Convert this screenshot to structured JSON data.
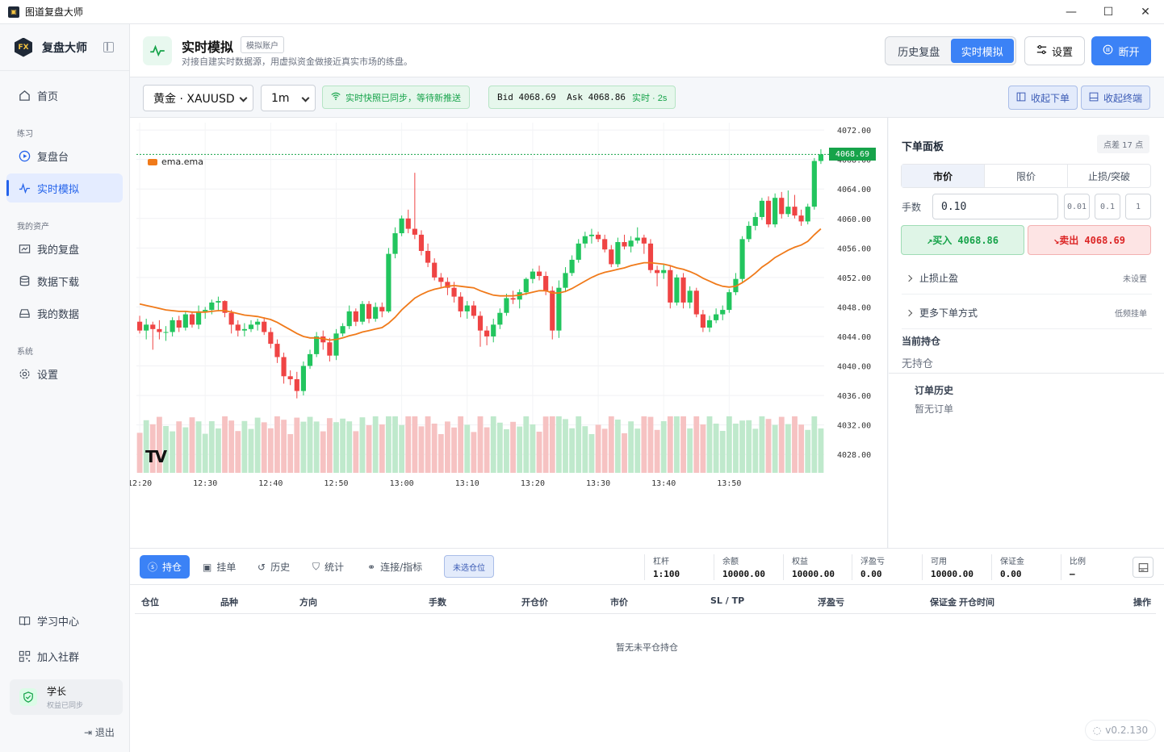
{
  "window": {
    "title": "图道复盘大师",
    "minimize": "—",
    "maximize": "☐",
    "close": "✕"
  },
  "sidebar": {
    "brand": "复盘大师",
    "logo_text": "FX",
    "home": "首页",
    "section_practice": "练习",
    "replay": "复盘台",
    "live_sim": "实时模拟",
    "section_assets": "我的资产",
    "my_replays": "我的复盘",
    "data_download": "数据下载",
    "my_data": "我的数据",
    "section_system": "系统",
    "settings": "设置",
    "learning": "学习中心",
    "community": "加入社群",
    "user_name": "学长",
    "user_status": "权益已同步",
    "logout": "退出"
  },
  "header": {
    "title": "实时模拟",
    "badge": "模拟账户",
    "subtitle": "对接自建实时数据源，用虚拟资金做接近真实市场的练盘。",
    "mode_history": "历史复盘",
    "mode_live": "实时模拟",
    "settings": "设置",
    "disconnect": "断开"
  },
  "toolbar": {
    "symbol": "黄金 · XAUUSD",
    "timeframe": "1m",
    "sync_status": "实时快照已同步，等待新推送",
    "bid_label": "Bid",
    "bid": "4068.69",
    "ask_label": "Ask",
    "ask": "4068.86",
    "live_label": "实时 · 2s",
    "collapse_order": "收起下单",
    "collapse_terminal": "收起终端"
  },
  "chart_data": {
    "type": "candlestick",
    "symbol": "XAUUSD",
    "indicator": "ema.ema",
    "last_price": "4068.69",
    "y_ticks": [
      "4072.00",
      "4068.00",
      "4064.00",
      "4060.00",
      "4056.00",
      "4052.00",
      "4048.00",
      "4044.00",
      "4040.00",
      "4036.00",
      "4032.00",
      "4028.00"
    ],
    "ylim": [
      4025.5,
      4073.0
    ],
    "x_ticks": [
      "12:20",
      "12:30",
      "12:40",
      "12:50",
      "13:00",
      "13:10",
      "13:20",
      "13:30",
      "13:40",
      "13:50"
    ],
    "candles_ohlc": [
      [
        4046.0,
        4046.8,
        4044.4,
        4044.8
      ],
      [
        4044.8,
        4046.4,
        4043.6,
        4045.6
      ],
      [
        4045.6,
        4046.0,
        4042.2,
        4045.0
      ],
      [
        4045.0,
        4046.2,
        4043.6,
        4044.6
      ],
      [
        4044.6,
        4045.4,
        4043.4,
        4044.6
      ],
      [
        4044.6,
        4046.6,
        4044.0,
        4046.2
      ],
      [
        4046.2,
        4046.8,
        4044.6,
        4045.2
      ],
      [
        4045.2,
        4047.4,
        4044.8,
        4047.0
      ],
      [
        4047.0,
        4047.4,
        4045.2,
        4045.6
      ],
      [
        4045.6,
        4048.2,
        4045.0,
        4047.4
      ],
      [
        4047.4,
        4048.0,
        4046.4,
        4047.6
      ],
      [
        4047.6,
        4049.0,
        4047.0,
        4048.6
      ],
      [
        4048.6,
        4049.4,
        4047.4,
        4048.8
      ],
      [
        4048.8,
        4048.9,
        4046.6,
        4047.2
      ],
      [
        4047.2,
        4047.6,
        4044.4,
        4045.6
      ],
      [
        4045.6,
        4046.2,
        4044.0,
        4044.8
      ],
      [
        4044.8,
        4045.8,
        4044.0,
        4045.0
      ],
      [
        4045.0,
        4046.2,
        4044.6,
        4045.6
      ],
      [
        4045.6,
        4046.4,
        4044.8,
        4046.0
      ],
      [
        4046.0,
        4046.6,
        4044.2,
        4044.6
      ],
      [
        4044.6,
        4045.2,
        4042.4,
        4043.0
      ],
      [
        4043.0,
        4043.6,
        4040.4,
        4041.2
      ],
      [
        4041.2,
        4041.8,
        4037.6,
        4038.6
      ],
      [
        4038.6,
        4039.4,
        4037.4,
        4038.2
      ],
      [
        4038.2,
        4039.2,
        4035.6,
        4036.6
      ],
      [
        4036.6,
        4040.6,
        4036.0,
        4040.0
      ],
      [
        4040.0,
        4042.2,
        4039.6,
        4041.6
      ],
      [
        4041.6,
        4044.6,
        4041.2,
        4044.0
      ],
      [
        4044.0,
        4044.8,
        4042.2,
        4043.2
      ],
      [
        4043.2,
        4043.8,
        4040.6,
        4041.4
      ],
      [
        4041.4,
        4045.0,
        4040.8,
        4044.4
      ],
      [
        4044.4,
        4045.8,
        4044.0,
        4045.4
      ],
      [
        4045.4,
        4048.2,
        4045.0,
        4047.4
      ],
      [
        4047.4,
        4047.8,
        4045.4,
        4046.0
      ],
      [
        4046.0,
        4048.8,
        4045.6,
        4048.4
      ],
      [
        4048.4,
        4048.8,
        4045.8,
        4046.4
      ],
      [
        4046.4,
        4048.6,
        4046.0,
        4048.0
      ],
      [
        4048.0,
        4048.6,
        4046.6,
        4047.4
      ],
      [
        4047.4,
        4056.0,
        4047.2,
        4055.2
      ],
      [
        4055.2,
        4058.8,
        4054.6,
        4058.0
      ],
      [
        4058.0,
        4060.4,
        4057.6,
        4060.0
      ],
      [
        4060.0,
        4061.2,
        4058.0,
        4058.6
      ],
      [
        4058.6,
        4066.2,
        4057.2,
        4057.8
      ],
      [
        4057.8,
        4058.4,
        4055.0,
        4055.6
      ],
      [
        4055.6,
        4056.6,
        4053.4,
        4054.0
      ],
      [
        4054.0,
        4054.6,
        4051.6,
        4052.0
      ],
      [
        4052.0,
        4052.6,
        4050.6,
        4051.4
      ],
      [
        4051.4,
        4052.0,
        4049.6,
        4050.6
      ],
      [
        4050.6,
        4051.4,
        4048.6,
        4049.4
      ],
      [
        4049.4,
        4050.0,
        4046.6,
        4047.4
      ],
      [
        4047.4,
        4048.8,
        4046.4,
        4048.2
      ],
      [
        4048.2,
        4048.8,
        4046.4,
        4046.8
      ],
      [
        4046.8,
        4047.4,
        4042.6,
        4044.8
      ],
      [
        4044.8,
        4045.4,
        4042.8,
        4044.0
      ],
      [
        4044.0,
        4046.4,
        4043.2,
        4045.6
      ],
      [
        4045.6,
        4047.8,
        4045.0,
        4047.2
      ],
      [
        4047.2,
        4049.8,
        4046.8,
        4049.2
      ],
      [
        4049.2,
        4050.2,
        4048.4,
        4049.0
      ],
      [
        4049.0,
        4050.4,
        4047.8,
        4050.0
      ],
      [
        4050.0,
        4052.0,
        4049.6,
        4051.8
      ],
      [
        4051.8,
        4053.2,
        4051.2,
        4052.8
      ],
      [
        4052.8,
        4053.6,
        4051.6,
        4052.2
      ],
      [
        4052.2,
        4052.8,
        4049.6,
        4050.2
      ],
      [
        4050.2,
        4050.8,
        4043.6,
        4044.8
      ],
      [
        4044.8,
        4051.6,
        4043.8,
        4050.6
      ],
      [
        4050.6,
        4053.4,
        4050.0,
        4052.6
      ],
      [
        4052.6,
        4055.0,
        4052.2,
        4054.4
      ],
      [
        4054.4,
        4057.2,
        4054.0,
        4056.6
      ],
      [
        4056.6,
        4058.2,
        4056.0,
        4057.6
      ],
      [
        4057.6,
        4058.6,
        4056.6,
        4057.8
      ],
      [
        4057.8,
        4058.2,
        4056.8,
        4057.2
      ],
      [
        4057.2,
        4057.8,
        4055.4,
        4055.8
      ],
      [
        4055.8,
        4056.4,
        4053.4,
        4053.8
      ],
      [
        4053.8,
        4057.4,
        4053.4,
        4056.8
      ],
      [
        4056.8,
        4057.8,
        4055.8,
        4056.2
      ],
      [
        4056.2,
        4057.6,
        4055.4,
        4057.0
      ],
      [
        4057.0,
        4058.8,
        4056.6,
        4057.4
      ],
      [
        4057.4,
        4057.8,
        4055.2,
        4056.6
      ],
      [
        4056.6,
        4057.2,
        4052.6,
        4053.0
      ],
      [
        4053.0,
        4053.6,
        4050.8,
        4052.6
      ],
      [
        4052.6,
        4053.8,
        4051.8,
        4053.0
      ],
      [
        4053.0,
        4053.6,
        4047.8,
        4048.6
      ],
      [
        4048.6,
        4052.4,
        4048.2,
        4052.0
      ],
      [
        4052.0,
        4052.6,
        4047.8,
        4048.6
      ],
      [
        4048.6,
        4050.8,
        4047.8,
        4050.2
      ],
      [
        4050.2,
        4050.6,
        4046.6,
        4047.0
      ],
      [
        4047.0,
        4047.6,
        4044.6,
        4045.2
      ],
      [
        4045.2,
        4046.8,
        4044.6,
        4046.2
      ],
      [
        4046.2,
        4047.8,
        4045.8,
        4047.0
      ],
      [
        4047.0,
        4048.2,
        4046.2,
        4047.6
      ],
      [
        4047.6,
        4050.4,
        4047.2,
        4050.0
      ],
      [
        4050.0,
        4052.6,
        4049.6,
        4051.8
      ],
      [
        4051.8,
        4057.6,
        4051.4,
        4057.2
      ],
      [
        4057.2,
        4059.6,
        4056.8,
        4059.0
      ],
      [
        4059.0,
        4060.8,
        4058.4,
        4060.2
      ],
      [
        4060.2,
        4062.8,
        4059.8,
        4062.4
      ],
      [
        4062.4,
        4063.0,
        4058.8,
        4059.2
      ],
      [
        4059.2,
        4063.4,
        4058.8,
        4062.8
      ],
      [
        4062.8,
        4063.6,
        4060.0,
        4060.6
      ],
      [
        4060.6,
        4063.8,
        4060.2,
        4061.6
      ],
      [
        4061.6,
        4063.2,
        4060.0,
        4060.4
      ],
      [
        4060.4,
        4061.2,
        4059.0,
        4059.6
      ],
      [
        4059.6,
        4062.0,
        4059.2,
        4061.6
      ],
      [
        4061.6,
        4068.2,
        4061.2,
        4067.8
      ],
      [
        4067.8,
        4069.4,
        4067.4,
        4068.7
      ]
    ],
    "ema_line": [
      4048.4,
      4048.2,
      4048.0,
      4047.8,
      4047.6,
      4047.5,
      4047.4,
      4047.4,
      4047.3,
      4047.3,
      4047.3,
      4047.4,
      4047.5,
      4047.5,
      4047.3,
      4047.1,
      4046.9,
      4046.8,
      4046.7,
      4046.5,
      4046.3,
      4045.9,
      4045.4,
      4044.9,
      4044.4,
      4044.0,
      4043.8,
      4043.8,
      4043.7,
      4043.5,
      4043.6,
      4043.8,
      4044.1,
      4044.3,
      4044.6,
      4044.8,
      4045.0,
      4045.2,
      4045.8,
      4046.6,
      4047.6,
      4048.4,
      4049.2,
      4049.7,
      4050.1,
      4050.4,
      4050.6,
      4050.8,
      4050.9,
      4050.8,
      4050.7,
      4050.6,
      4050.2,
      4049.9,
      4049.6,
      4049.5,
      4049.5,
      4049.5,
      4049.6,
      4049.8,
      4050.0,
      4050.2,
      4050.2,
      4049.9,
      4049.9,
      4050.1,
      4050.5,
      4051.0,
      4051.5,
      4052.0,
      4052.4,
      4052.7,
      4052.9,
      4053.1,
      4053.3,
      4053.6,
      4053.8,
      4054.0,
      4054.0,
      4053.9,
      4053.8,
      4053.6,
      4053.3,
      4053.1,
      4052.8,
      4052.4,
      4051.9,
      4051.5,
      4051.1,
      4050.8,
      4050.7,
      4050.8,
      4051.3,
      4051.9,
      4052.6,
      4053.4,
      4054.0,
      4054.7,
      4055.2,
      4055.7,
      4056.1,
      4056.4,
      4056.9,
      4057.8,
      4058.6
    ],
    "volume_note": "colored volume bars below candles",
    "legend": "ema.ema"
  },
  "order_panel": {
    "title": "下单面板",
    "spread": "点差 17 点",
    "tab_market": "市价",
    "tab_limit": "限价",
    "tab_stop": "止损/突破",
    "lot_label": "手数",
    "lot_value": "0.10",
    "step_001": "0.01",
    "step_01": "0.1",
    "step_1": "1",
    "buy": "↗买入 4068.86",
    "sell": "↘卖出 4068.69",
    "sltp": "止损止盈",
    "sltp_state": "未设置",
    "more_orders": "更多下单方式",
    "more_orders_hint": "低频挂单",
    "position_title": "当前持仓",
    "position_none": "无持仓",
    "history_title": "订单历史",
    "history_none": "暂无订单"
  },
  "bottom": {
    "tab_positions": "持仓",
    "tab_pending": "挂单",
    "tab_history": "历史",
    "tab_stats": "统计",
    "tab_connect": "连接/指标",
    "badge": "未选仓位",
    "leverage_k": "杠杆",
    "leverage_v": "1:100",
    "balance_k": "余额",
    "balance_v": "10000.00",
    "equity_k": "权益",
    "equity_v": "10000.00",
    "floating_k": "浮盈亏",
    "floating_v": "0.00",
    "free_k": "可用",
    "free_v": "10000.00",
    "margin_k": "保证金",
    "margin_v": "0.00",
    "ratio_k": "比例",
    "ratio_v": "—",
    "columns": [
      "仓位",
      "品种",
      "方向",
      "手数",
      "开仓价",
      "市价",
      "SL / TP",
      "浮盈亏",
      "保证金",
      "开仓时间",
      "操作"
    ],
    "empty": "暂无未平仓持仓",
    "version": "v0.2.130"
  },
  "colors": {
    "up": "#22c55e",
    "down": "#ef4444",
    "accent": "#3b82f6",
    "ema": "#f07a1a"
  }
}
